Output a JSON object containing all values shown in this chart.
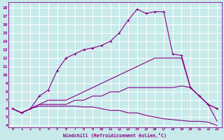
{
  "xlabel": "Windchill (Refroidissement éolien,°C)",
  "background_color": "#c8eaea",
  "grid_color": "#ffffff",
  "line_color": "#880088",
  "xlim": [
    -0.5,
    23.5
  ],
  "ylim": [
    3.8,
    18.6
  ],
  "xticks": [
    0,
    1,
    2,
    3,
    4,
    5,
    6,
    7,
    8,
    9,
    10,
    11,
    12,
    13,
    14,
    15,
    16,
    17,
    18,
    19,
    20,
    21,
    22,
    23
  ],
  "yticks": [
    4,
    5,
    6,
    7,
    8,
    9,
    10,
    11,
    12,
    13,
    14,
    15,
    16,
    17,
    18
  ],
  "lines": [
    {
      "x": [
        0,
        1,
        2,
        3,
        4,
        5,
        6,
        7,
        8,
        9,
        10,
        11,
        12,
        13,
        14,
        15,
        16,
        17,
        18,
        19,
        20,
        21,
        22,
        23
      ],
      "y": [
        6.0,
        5.5,
        6.0,
        7.5,
        8.2,
        10.5,
        12.0,
        12.5,
        13.0,
        13.2,
        13.5,
        14.0,
        15.0,
        16.5,
        17.8,
        17.3,
        17.5,
        17.5,
        12.5,
        12.3,
        8.5,
        7.5,
        6.5,
        6.0
      ],
      "marker": true
    },
    {
      "x": [
        0,
        1,
        2,
        3,
        4,
        5,
        6,
        7,
        8,
        9,
        10,
        11,
        12,
        13,
        14,
        15,
        16,
        17,
        18,
        19,
        20,
        21,
        22,
        23
      ],
      "y": [
        6.0,
        5.5,
        6.0,
        6.5,
        7.0,
        7.0,
        7.0,
        7.5,
        8.0,
        8.5,
        9.0,
        9.5,
        10.0,
        10.5,
        11.0,
        11.5,
        12.0,
        12.0,
        12.0,
        12.0,
        8.5,
        7.5,
        6.5,
        6.0
      ],
      "marker": false
    },
    {
      "x": [
        0,
        1,
        2,
        3,
        4,
        5,
        6,
        7,
        8,
        9,
        10,
        11,
        12,
        13,
        14,
        15,
        16,
        17,
        18,
        19,
        20,
        21,
        22,
        23
      ],
      "y": [
        6.0,
        5.5,
        6.0,
        6.5,
        6.5,
        6.5,
        6.5,
        7.0,
        7.0,
        7.5,
        7.5,
        8.0,
        8.0,
        8.5,
        8.5,
        8.5,
        8.5,
        8.5,
        8.5,
        8.7,
        8.5,
        7.5,
        6.5,
        4.5
      ],
      "marker": false
    },
    {
      "x": [
        0,
        1,
        2,
        3,
        4,
        5,
        6,
        7,
        8,
        9,
        10,
        11,
        12,
        13,
        14,
        15,
        16,
        17,
        18,
        19,
        20,
        21,
        22,
        23
      ],
      "y": [
        6.0,
        5.5,
        6.0,
        6.3,
        6.3,
        6.3,
        6.3,
        6.3,
        6.2,
        6.2,
        6.0,
        5.8,
        5.8,
        5.5,
        5.5,
        5.2,
        5.0,
        4.8,
        4.7,
        4.6,
        4.5,
        4.5,
        4.4,
        4.0
      ],
      "marker": false
    }
  ]
}
